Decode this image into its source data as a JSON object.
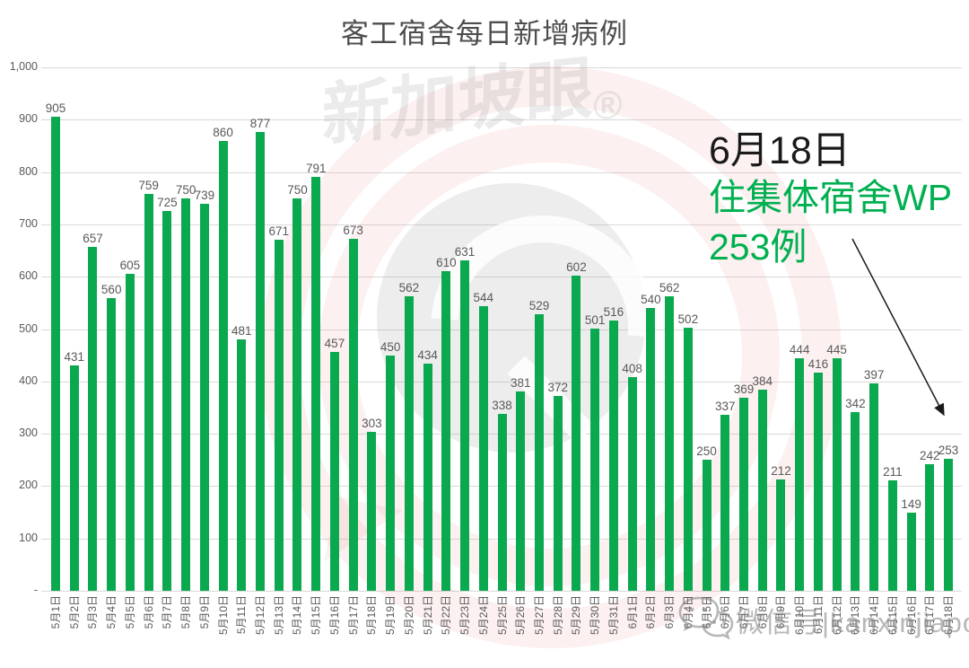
{
  "title": "客工宿舍每日新增病例",
  "colors": {
    "bar": "#0ba94f",
    "grid": "#d9d9d9",
    "axis_text": "#595959",
    "title_text": "#4d4d4d",
    "annotation_green": "#00b050",
    "annotation_black": "#1a1a1a"
  },
  "annotation": {
    "line1": "6月18日",
    "line2": "住集体宿舍WP",
    "line3": "253例"
  },
  "watermark": {
    "brand": "新加坡眼",
    "registered": "®",
    "wechat_text": "微信号|kanxinjiapo"
  },
  "y_axis": {
    "tick_labels_bottom_to_top": [
      "-",
      "100",
      "200",
      "300",
      "400",
      "500",
      "600",
      "700",
      "800",
      "900",
      "1,000"
    ]
  },
  "chart_data": {
    "type": "bar",
    "title": "客工宿舍每日新增病例",
    "xlabel": "",
    "ylabel": "",
    "ylim": [
      0,
      1000
    ],
    "ytick_interval": 100,
    "ytick_labels": [
      "-",
      "100",
      "200",
      "300",
      "400",
      "500",
      "600",
      "700",
      "800",
      "900",
      "1,000"
    ],
    "grid": true,
    "bar_color": "#0ba94f",
    "legend": null,
    "categories": [
      "5月1日",
      "5月2日",
      "5月3日",
      "5月4日",
      "5月5日",
      "5月6日",
      "5月7日",
      "5月8日",
      "5月9日",
      "5月10日",
      "5月11日",
      "5月12日",
      "5月13日",
      "5月14日",
      "5月15日",
      "5月16日",
      "5月17日",
      "5月18日",
      "5月19日",
      "5月20日",
      "5月21日",
      "5月22日",
      "5月23日",
      "5月24日",
      "5月25日",
      "5月26日",
      "5月27日",
      "5月28日",
      "5月29日",
      "5月30日",
      "5月31日",
      "6月1日",
      "6月2日",
      "6月3日",
      "6月4日",
      "6月5日",
      "6月6日",
      "6月7日",
      "6月8日",
      "6月9日",
      "6月10日",
      "6月11日",
      "6月12日",
      "6月13日",
      "6月14日",
      "6月15日",
      "6月16日",
      "6月17日",
      "6月18日"
    ],
    "values": [
      905,
      431,
      657,
      560,
      605,
      759,
      725,
      750,
      739,
      860,
      481,
      877,
      671,
      750,
      791,
      457,
      673,
      303,
      450,
      562,
      434,
      610,
      631,
      544,
      338,
      381,
      529,
      372,
      602,
      501,
      516,
      408,
      540,
      562,
      502,
      250,
      337,
      369,
      384,
      212,
      444,
      416,
      445,
      342,
      397,
      211,
      149,
      242,
      253
    ]
  }
}
